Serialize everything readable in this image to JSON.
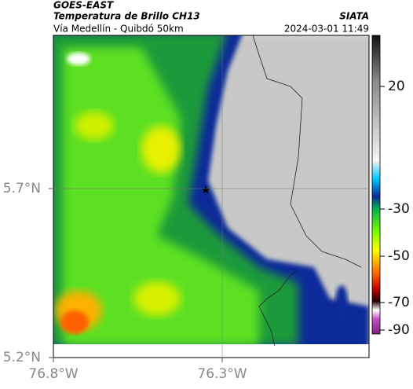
{
  "header": {
    "title": "GOES-EAST",
    "subtitle": "Temperatura de Brillo CH13",
    "source": "SIATA",
    "route": "Vía Medellín - Quibdó 50km",
    "timestamp": "2024-03-01 11:49"
  },
  "map": {
    "yticks": [
      {
        "value": 5.2,
        "label": "5.2°N"
      },
      {
        "value": 5.7,
        "label": "5.7°N"
      }
    ],
    "xticks": [
      {
        "value": -76.8,
        "label": "76.8°W"
      },
      {
        "value": -76.3,
        "label": "76.3°W"
      }
    ]
  },
  "colorbar": {
    "ticks": [
      20,
      -30,
      -50,
      -70,
      -90
    ]
  }
}
